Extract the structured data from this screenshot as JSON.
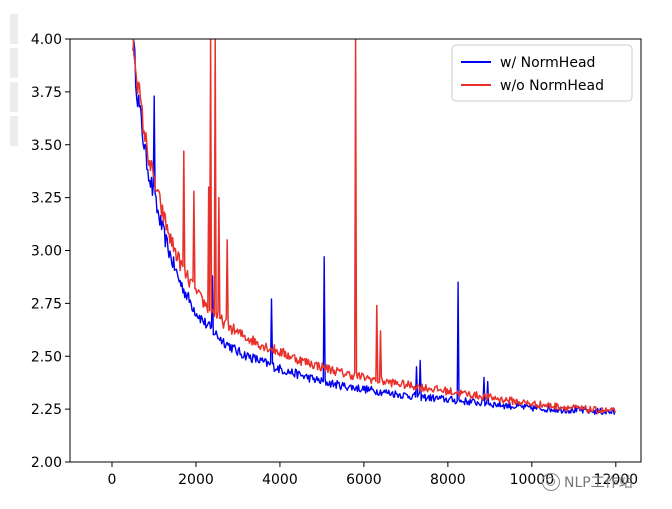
{
  "chart_data": {
    "type": "line",
    "title": "",
    "xlabel": "",
    "ylabel": "",
    "xlim": [
      -1000,
      12600
    ],
    "ylim": [
      2.0,
      4.0
    ],
    "x_ticks": [
      0,
      2000,
      4000,
      6000,
      8000,
      10000,
      12000
    ],
    "x_tick_labels": [
      "0",
      "2000",
      "4000",
      "6000",
      "8000",
      "10000",
      "12000"
    ],
    "y_ticks": [
      2.0,
      2.25,
      2.5,
      2.75,
      3.0,
      3.25,
      3.5,
      3.75,
      4.0
    ],
    "y_tick_labels": [
      "2.00",
      "2.25",
      "2.50",
      "2.75",
      "3.00",
      "3.25",
      "3.50",
      "3.75",
      "4.00"
    ],
    "grid": false,
    "legend_position": "top-right",
    "series": [
      {
        "name": "w/ NormHead",
        "color": "#0000ee",
        "x": [
          500,
          600,
          700,
          800,
          900,
          1000,
          1200,
          1400,
          1600,
          1800,
          2000,
          2200,
          2400,
          2600,
          2800,
          3000,
          3500,
          4000,
          4500,
          5000,
          5500,
          6000,
          6500,
          7000,
          7500,
          8000,
          8500,
          9000,
          9500,
          10000,
          10500,
          11000,
          11500,
          12000
        ],
        "values": [
          4.0,
          3.75,
          3.6,
          3.45,
          3.35,
          3.25,
          3.1,
          2.97,
          2.86,
          2.78,
          2.71,
          2.66,
          2.62,
          2.58,
          2.55,
          2.52,
          2.48,
          2.44,
          2.41,
          2.38,
          2.36,
          2.345,
          2.33,
          2.315,
          2.305,
          2.295,
          2.285,
          2.275,
          2.265,
          2.255,
          2.25,
          2.245,
          2.24,
          2.235
        ],
        "spikes": [
          {
            "x": 1000,
            "y": 3.73
          },
          {
            "x": 2400,
            "y": 2.88
          },
          {
            "x": 3800,
            "y": 2.77
          },
          {
            "x": 5050,
            "y": 2.97
          },
          {
            "x": 7250,
            "y": 2.45
          },
          {
            "x": 7350,
            "y": 2.48
          },
          {
            "x": 8250,
            "y": 2.85
          },
          {
            "x": 8850,
            "y": 2.4
          },
          {
            "x": 8950,
            "y": 2.38
          }
        ]
      },
      {
        "name": "w/o NormHead",
        "color": "#e8312a",
        "x": [
          500,
          600,
          700,
          800,
          900,
          1000,
          1200,
          1400,
          1600,
          1800,
          2000,
          2200,
          2400,
          2600,
          2800,
          3000,
          3500,
          4000,
          4500,
          5000,
          5500,
          6000,
          6500,
          7000,
          7500,
          8000,
          8500,
          9000,
          9500,
          10000,
          10500,
          11000,
          11500,
          12000
        ],
        "values": [
          4.0,
          3.82,
          3.66,
          3.52,
          3.42,
          3.33,
          3.18,
          3.05,
          2.95,
          2.87,
          2.8,
          2.75,
          2.71,
          2.67,
          2.64,
          2.61,
          2.56,
          2.52,
          2.48,
          2.45,
          2.42,
          2.4,
          2.38,
          2.365,
          2.35,
          2.335,
          2.32,
          2.305,
          2.29,
          2.275,
          2.265,
          2.255,
          2.245,
          2.24
        ],
        "spikes": [
          {
            "x": 1700,
            "y": 3.47
          },
          {
            "x": 1950,
            "y": 3.28
          },
          {
            "x": 2300,
            "y": 3.3
          },
          {
            "x": 2350,
            "y": 4.0
          },
          {
            "x": 2450,
            "y": 4.0
          },
          {
            "x": 2550,
            "y": 3.25
          },
          {
            "x": 2750,
            "y": 3.05
          },
          {
            "x": 5800,
            "y": 4.0
          },
          {
            "x": 6300,
            "y": 2.74
          },
          {
            "x": 6400,
            "y": 2.62
          }
        ]
      }
    ]
  },
  "watermark": {
    "text": "NLP工作站",
    "icon": "wechat-logo-icon"
  }
}
